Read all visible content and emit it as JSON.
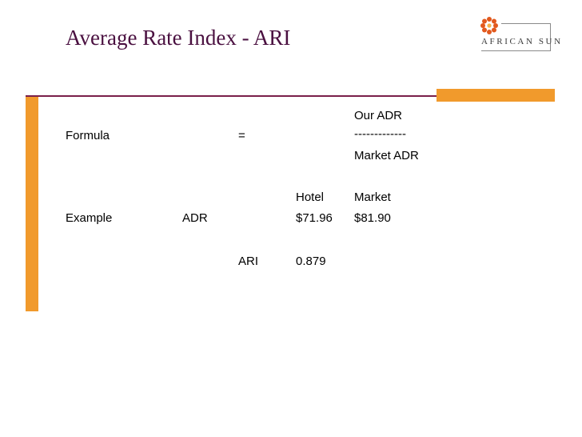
{
  "slide": {
    "title": "Average Rate Index - ARI"
  },
  "logo": {
    "text": "AFRICAN SUN",
    "icon": "sun-flower-icon"
  },
  "colors": {
    "title": "#4a1040",
    "rule": "#7a1f4a",
    "accent": "#f19a2c"
  },
  "formula": {
    "label": "Formula",
    "equals": "=",
    "numerator": "Our ADR",
    "divider": "-------------",
    "denominator": "Market ADR"
  },
  "example": {
    "label": "Example",
    "metric": "ADR",
    "hotel_header": "Hotel",
    "market_header": "Market",
    "hotel_value": "$71.96",
    "market_value": "$81.90",
    "result_label": "ARI",
    "result_value": "0.879"
  }
}
